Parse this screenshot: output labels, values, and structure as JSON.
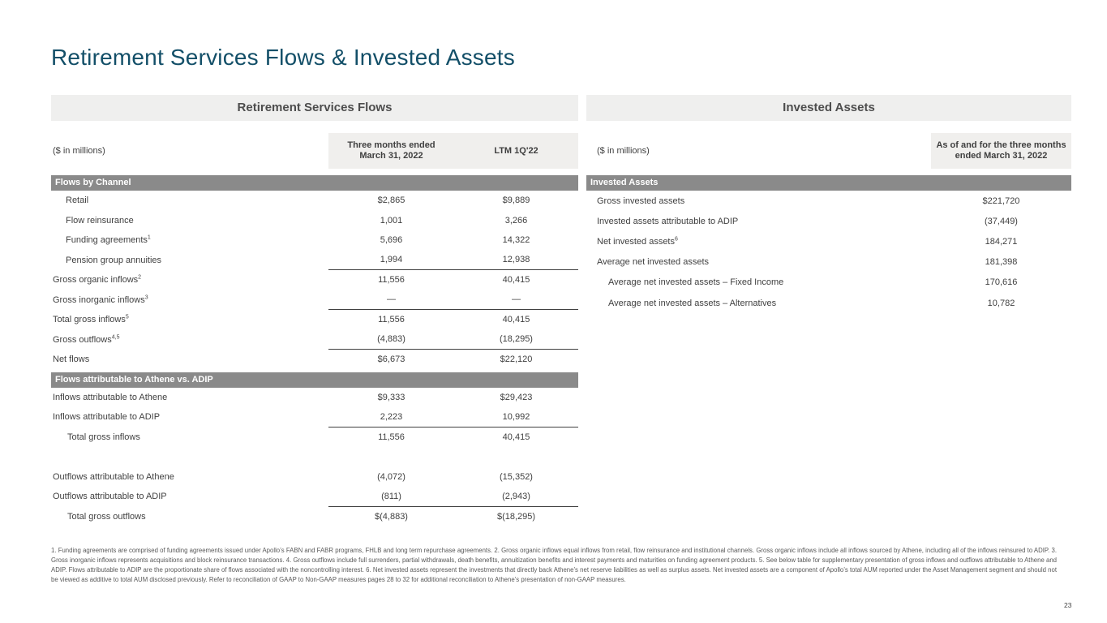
{
  "slide": {
    "title": "Retirement Services Flows & Invested Assets",
    "page_number": "23",
    "footnote": "1. Funding agreements are comprised of funding agreements issued under Apollo’s FABN and FABR programs, FHLB and long term repurchase agreements. 2. Gross organic inflows equal inflows from retail, flow reinsurance and institutional channels. Gross organic inflows include all inflows sourced by Athene, including all of the inflows reinsured to ADIP. 3. Gross inorganic inflows represents acquisitions and block reinsurance transactions. 4. Gross outflows include full surrenders, partial withdrawals, death benefits, annuitization benefits and interest payments and maturities on funding agreement products. 5. See below table for supplementary presentation of gross inflows and outflows attributable to Athene and ADIP. Flows attributable to ADIP are the proportionate share of flows associated with the noncontrolling interest. 6. Net invested assets represent the investments that directly back Athene’s net reserve liabilities as well as surplus assets. Net invested assets are a component of Apollo’s total AUM reported under the Asset Management segment and should not be viewed as additive to total AUM disclosed previously. Refer to reconciliation of GAAP to Non-GAAP measures pages 28 to 32 for additional reconciliation to Athene’s presentation of non-GAAP measures."
  },
  "colors": {
    "title_accent": "#134f68",
    "panel_header_bg": "#efefee",
    "column_header_bg": "#f0efed",
    "section_bar_bg": "#8a8a8a",
    "body_text": "#3f3f3f"
  },
  "left_table": {
    "panel_title": "Retirement Services Flows",
    "units_label": "($ in millions)",
    "columns": {
      "q1": "Three months ended March 31, 2022",
      "ltm": "LTM 1Q'22"
    },
    "section1": {
      "header": "Flows by Channel",
      "rows": [
        {
          "label": "Retail",
          "q1": "$2,865",
          "ltm": "$9,889"
        },
        {
          "label": "Flow reinsurance",
          "q1": "1,001",
          "ltm": "3,266"
        },
        {
          "label": "Funding agreements",
          "sup": "1",
          "q1": "5,696",
          "ltm": "14,322"
        },
        {
          "label": "Pension group annuities",
          "q1": "1,994",
          "ltm": "12,938"
        },
        {
          "label": "Gross organic inflows",
          "sup": "2",
          "q1": "11,556",
          "ltm": "40,415"
        },
        {
          "label": "Gross inorganic inflows",
          "sup": "3",
          "q1": "—",
          "ltm": "—"
        },
        {
          "label": "Total gross inflows",
          "sup": "5",
          "q1": "11,556",
          "ltm": "40,415"
        },
        {
          "label": "Gross outflows",
          "sup": "4,5",
          "q1": "(4,883)",
          "ltm": "(18,295)"
        },
        {
          "label": "Net flows",
          "q1": "$6,673",
          "ltm": "$22,120"
        }
      ]
    },
    "section2": {
      "header": "Flows attributable to Athene vs. ADIP",
      "rows": [
        {
          "label": "Inflows attributable to Athene",
          "q1": "$9,333",
          "ltm": "$29,423"
        },
        {
          "label": "Inflows attributable to ADIP",
          "q1": "2,223",
          "ltm": "10,992"
        },
        {
          "label": "Total gross inflows",
          "q1": "11,556",
          "ltm": "40,415"
        },
        {
          "label": "Outflows attributable to Athene",
          "q1": "(4,072)",
          "ltm": "(15,352)"
        },
        {
          "label": "Outflows attributable to ADIP",
          "q1": "(811)",
          "ltm": "(2,943)"
        },
        {
          "label": "Total gross outflows",
          "q1": "$(4,883)",
          "ltm": "$(18,295)"
        }
      ]
    }
  },
  "right_table": {
    "panel_title": "Invested Assets",
    "units_label": "($ in millions)",
    "column_header": "As of and for the three months ended March 31, 2022",
    "section_header": "Invested Assets",
    "rows": [
      {
        "label": "Gross invested assets",
        "value": "$221,720"
      },
      {
        "label": "Invested assets attributable to ADIP",
        "value": "(37,449)"
      },
      {
        "label": "Net invested assets",
        "sup": "6",
        "value": "184,271"
      },
      {
        "label": "Average net invested assets",
        "value": "181,398"
      },
      {
        "label": "Average net invested assets – Fixed Income",
        "value": "170,616"
      },
      {
        "label": "Average net invested assets – Alternatives",
        "value": "10,782"
      }
    ]
  }
}
